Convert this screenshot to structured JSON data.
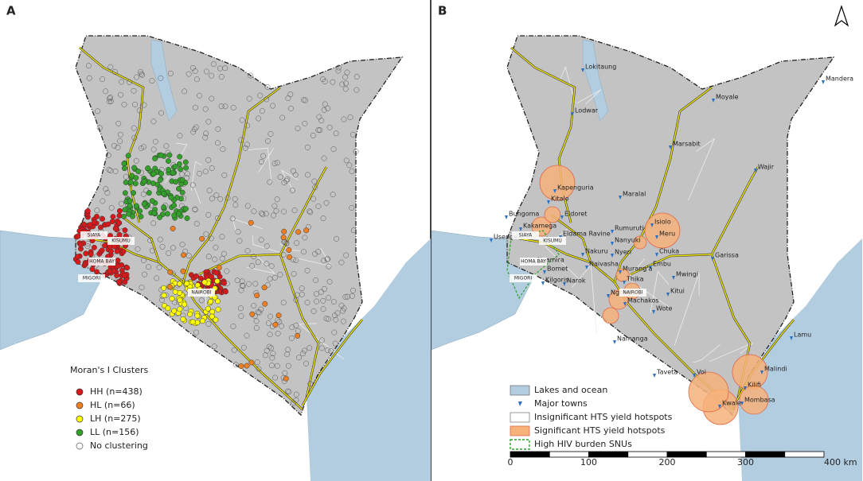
{
  "panels": [
    {
      "label": "A",
      "county_labels": [
        "SIAYA",
        "KISUMU",
        "HOMA BAY",
        "MIGORI",
        "NAIROBI"
      ],
      "legend": {
        "title": "Moran's I Clusters",
        "items": [
          "HH (n=438)",
          "HL (n=66)",
          "LH (n=275)",
          "LL (n=156)",
          "No clustering"
        ]
      }
    },
    {
      "label": "B",
      "county_labels": [
        "SIAYA",
        "KISUMU",
        "HOMA BAY",
        "MIGORI",
        "NAIROBI"
      ],
      "towns": [
        "Lokitaung",
        "Mandera",
        "Moyale",
        "Lodwar",
        "Marsabit",
        "Wajir",
        "Kapenguria",
        "Maralal",
        "Kitale",
        "Bungoma",
        "Eldoret",
        "Kakamega",
        "Rumuruti",
        "Isiolo",
        "Meru",
        "Usenge",
        "Eldama Ravine",
        "Nanyuki",
        "Nyeri",
        "Nakuru",
        "Chuka",
        "Garissa",
        "Nyamira",
        "Naivasha",
        "Embu",
        "Bomet",
        "Murang'a",
        "Thika",
        "Mwingi",
        "Narok",
        "Kilgoris",
        "Ngong",
        "Kitui",
        "Machakos",
        "Wote",
        "Namanga",
        "Lamu",
        "Taveta",
        "Voi",
        "Malindi",
        "Kilifi",
        "Mombasa",
        "Kwale"
      ],
      "legend": {
        "items": [
          "Lakes and ocean",
          "Major towns",
          "Insignificant HTS yield hotspots",
          "Significant HTS yield hotspots",
          "High HIV burden SNUs"
        ]
      },
      "scale_bar": [
        "0",
        "100",
        "200",
        "300",
        "400 km"
      ]
    }
  ]
}
